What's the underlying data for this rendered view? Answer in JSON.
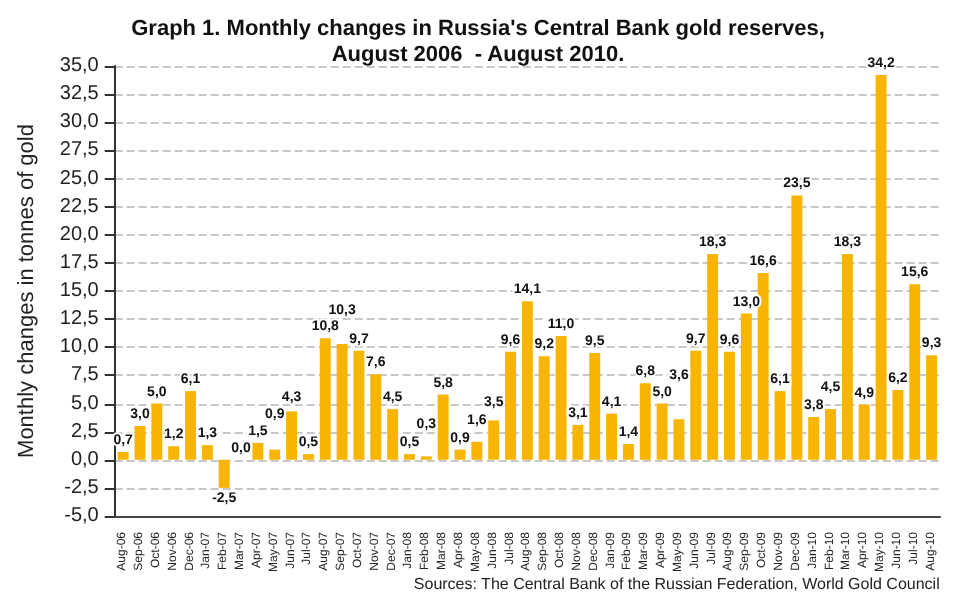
{
  "chart_data": {
    "type": "bar",
    "title": "Graph 1. Monthly changes in Russia's Central Bank gold reserves,\nAugust 2006  - August 2010.",
    "ylabel": "Monthly changes in tonnes of gold",
    "categories": [
      "Aug-06",
      "Sep-06",
      "Oct-06",
      "Nov-06",
      "Dec-06",
      "Jan-07",
      "Feb-07",
      "Mar-07",
      "Apr-07",
      "May-07",
      "Jun-07",
      "Jul-07",
      "Aug-07",
      "Sep-07",
      "Oct-07",
      "Nov-07",
      "Dec-07",
      "Jan-08",
      "Feb-08",
      "Mar-08",
      "Apr-08",
      "May-08",
      "Jun-08",
      "Jul-08",
      "Aug-08",
      "Sep-08",
      "Oct-08",
      "Nov-08",
      "Dec-08",
      "Jan-09",
      "Feb-09",
      "Mar-09",
      "Apr-09",
      "May-09",
      "Jun-09",
      "Jul-09",
      "Aug-09",
      "Sep-09",
      "Oct-09",
      "Nov-09",
      "Dec-09",
      "Jan-10",
      "Feb-10",
      "Mar-10",
      "Apr-10",
      "May-10",
      "Jun-10",
      "Jul-10",
      "Aug-10"
    ],
    "values": [
      0.7,
      3.0,
      5.0,
      1.2,
      6.1,
      1.3,
      -2.5,
      0.0,
      1.5,
      0.9,
      4.3,
      0.5,
      10.8,
      10.3,
      9.7,
      7.6,
      4.5,
      0.5,
      0.3,
      5.8,
      0.9,
      1.6,
      3.5,
      9.6,
      14.1,
      9.2,
      11.0,
      3.1,
      9.5,
      4.1,
      1.4,
      6.8,
      5.0,
      3.6,
      9.7,
      18.3,
      9.6,
      13.0,
      16.6,
      6.1,
      23.5,
      3.8,
      4.5,
      18.3,
      4.9,
      34.2,
      6.2,
      15.6,
      9.3
    ],
    "value_labels": [
      "0,7",
      "3,0",
      "5,0",
      "1,2",
      "6,1",
      "1,3",
      "-2,5",
      "0,0",
      "1,5",
      "0,9",
      "4,3",
      "0,5",
      "10,8",
      "10,3",
      "9,7",
      "7,6",
      "4,5",
      "0,5",
      "0,3",
      "5,8",
      "0,9",
      "1,6",
      "3,5",
      "9,6",
      "14,1",
      "9,2",
      "11,0",
      "3,1",
      "9,5",
      "4,1",
      "1,4",
      "6,8",
      "5,0",
      "3,6",
      "9,7",
      "18,3",
      "9,6",
      "13,0",
      "16,6",
      "6,1",
      "23,5",
      "3,8",
      "4,5",
      "18,3",
      "4,9",
      "34,2",
      "6,2",
      "15,6",
      "9,3"
    ],
    "color": "#f7b500",
    "ylim": [
      -5,
      35
    ],
    "yticks": [
      {
        "value": -5,
        "label": "-5,0"
      },
      {
        "value": -2.5,
        "label": "-2,5"
      },
      {
        "value": 0,
        "label": "0,0"
      },
      {
        "value": 2.5,
        "label": "2,5"
      },
      {
        "value": 5,
        "label": "5,0"
      },
      {
        "value": 7.5,
        "label": "7,5"
      },
      {
        "value": 10,
        "label": "10,0"
      },
      {
        "value": 12.5,
        "label": "12,5"
      },
      {
        "value": 15,
        "label": "15,0"
      },
      {
        "value": 17.5,
        "label": "17,5"
      },
      {
        "value": 20,
        "label": "20,0"
      },
      {
        "value": 22.5,
        "label": "22,5"
      },
      {
        "value": 25,
        "label": "25,0"
      },
      {
        "value": 27.5,
        "label": "27,5"
      },
      {
        "value": 30,
        "label": "30,0"
      },
      {
        "value": 32.5,
        "label": "32,5"
      },
      {
        "value": 35,
        "label": "35,0"
      }
    ],
    "grid": "y",
    "annotations": [
      "Sources: The Central Bank of the Russian Federation, World Gold Council"
    ]
  }
}
